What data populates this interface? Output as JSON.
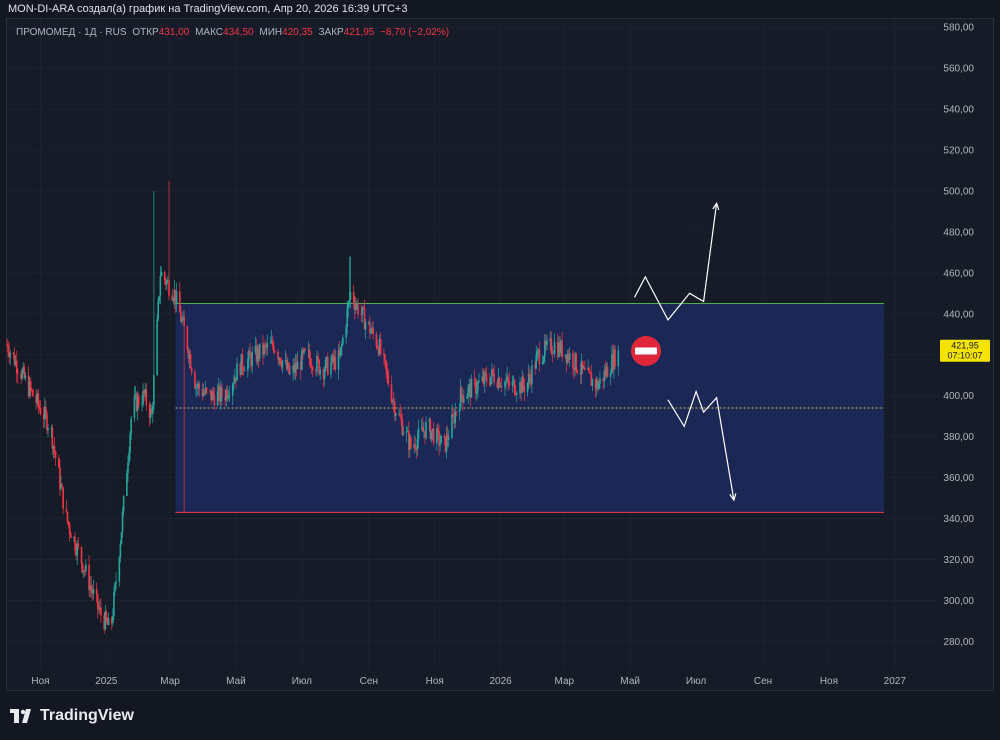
{
  "attribution": "MON-DI-ARA создал(а) график на TradingView.com, Апр 20, 2026 16:39 UTC+3",
  "legend": {
    "symbol": "ПРОМОМЕД · 1Д · RUS",
    "open_label": "ОТКР",
    "open": "431,00",
    "high_label": "МАКС",
    "high": "434,50",
    "low_label": "МИН",
    "low": "420,35",
    "close_label": "ЗАКР",
    "close": "421,95",
    "change": "−8,70 (−2,02%)"
  },
  "last_price_tag": {
    "price": "421,95",
    "countdown": "07:10:07",
    "value": 421.95
  },
  "brand": "TradingView",
  "colors": {
    "up": "#26a69a",
    "down": "#f23645",
    "background": "#161b28",
    "range_fill": "#1c2a5e",
    "resistance": "#4caf50",
    "support": "#f23645",
    "midline": "#c9b458",
    "tag": "#f5e300",
    "stop_sign": "#e0263a"
  },
  "icons": [
    "stop-sign-icon",
    "tradingview-logo-icon"
  ],
  "chart_data": {
    "type": "candlestick",
    "instrument": "ПРОМОМЕД",
    "timeframe": "1Д",
    "y_ticks": [
      "580,00",
      "560,00",
      "540,00",
      "520,00",
      "500,00",
      "480,00",
      "460,00",
      "440,00",
      "420,00",
      "400,00",
      "380,00",
      "360,00",
      "340,00",
      "320,00",
      "300,00",
      "280,00"
    ],
    "y_tick_values": [
      580,
      560,
      540,
      520,
      500,
      480,
      460,
      440,
      420,
      400,
      380,
      360,
      340,
      320,
      300,
      280
    ],
    "ylim": [
      266,
      584
    ],
    "x_ticks": [
      "Ноя",
      "2025",
      "Мар",
      "Май",
      "Июл",
      "Сен",
      "Ноя",
      "2026",
      "Мар",
      "Май",
      "Июл",
      "Сен",
      "Ноя",
      "2027"
    ],
    "x_tick_dates": [
      "2024-11-01",
      "2025-01-01",
      "2025-03-01",
      "2025-05-01",
      "2025-07-01",
      "2025-09-01",
      "2025-11-01",
      "2026-01-01",
      "2026-03-01",
      "2026-05-01",
      "2026-07-01",
      "2026-09-01",
      "2026-11-01",
      "2027-01-01"
    ],
    "x_range": [
      "2024-10-01",
      "2027-02-10"
    ],
    "price_path": [
      [
        "2024-10-01",
        425
      ],
      [
        "2024-10-20",
        405
      ],
      [
        "2024-11-10",
        385
      ],
      [
        "2024-11-25",
        340
      ],
      [
        "2024-12-10",
        318
      ],
      [
        "2024-12-25",
        295
      ],
      [
        "2025-01-05",
        285
      ],
      [
        "2025-01-15",
        335
      ],
      [
        "2025-01-25",
        395
      ],
      [
        "2025-02-05",
        400
      ],
      [
        "2025-02-12",
        390
      ],
      [
        "2025-02-20",
        460
      ],
      [
        "2025-03-05",
        450
      ],
      [
        "2025-03-15",
        430
      ],
      [
        "2025-03-25",
        405
      ],
      [
        "2025-04-05",
        400
      ],
      [
        "2025-04-20",
        400
      ],
      [
        "2025-05-05",
        415
      ],
      [
        "2025-05-20",
        420
      ],
      [
        "2025-06-05",
        425
      ],
      [
        "2025-06-20",
        410
      ],
      [
        "2025-07-05",
        420
      ],
      [
        "2025-07-20",
        413
      ],
      [
        "2025-08-05",
        418
      ],
      [
        "2025-08-15",
        450
      ],
      [
        "2025-08-25",
        440
      ],
      [
        "2025-09-10",
        425
      ],
      [
        "2025-09-25",
        395
      ],
      [
        "2025-10-10",
        375
      ],
      [
        "2025-10-25",
        385
      ],
      [
        "2025-11-10",
        375
      ],
      [
        "2025-11-25",
        400
      ],
      [
        "2025-12-10",
        405
      ],
      [
        "2025-12-25",
        410
      ],
      [
        "2026-01-10",
        405
      ],
      [
        "2026-01-25",
        405
      ],
      [
        "2026-02-05",
        420
      ],
      [
        "2026-02-20",
        425
      ],
      [
        "2026-03-05",
        420
      ],
      [
        "2026-03-20",
        410
      ],
      [
        "2026-04-01",
        405
      ],
      [
        "2026-04-10",
        413
      ],
      [
        "2026-04-20",
        422
      ]
    ],
    "spikes": [
      {
        "date": "2025-02-15",
        "high": 500
      },
      {
        "date": "2025-03-01",
        "high": 505
      },
      {
        "date": "2025-03-15",
        "low": 343
      },
      {
        "date": "2025-08-15",
        "high": 468
      }
    ],
    "last_close": 421.95,
    "range_box": {
      "start": "2025-03-06",
      "end": "2026-12-22",
      "top": 445,
      "bottom": 343,
      "mid": 394
    },
    "projection_up": [
      [
        "2026-05-05",
        448
      ],
      [
        "2026-05-15",
        458
      ],
      [
        "2026-06-05",
        437
      ],
      [
        "2026-06-25",
        450
      ],
      [
        "2026-07-08",
        446
      ],
      [
        "2026-07-20",
        494
      ]
    ],
    "projection_down": [
      [
        "2026-06-05",
        398
      ],
      [
        "2026-06-20",
        385
      ],
      [
        "2026-07-01",
        402
      ],
      [
        "2026-07-08",
        392
      ],
      [
        "2026-07-20",
        399
      ],
      [
        "2026-08-05",
        349
      ]
    ]
  }
}
